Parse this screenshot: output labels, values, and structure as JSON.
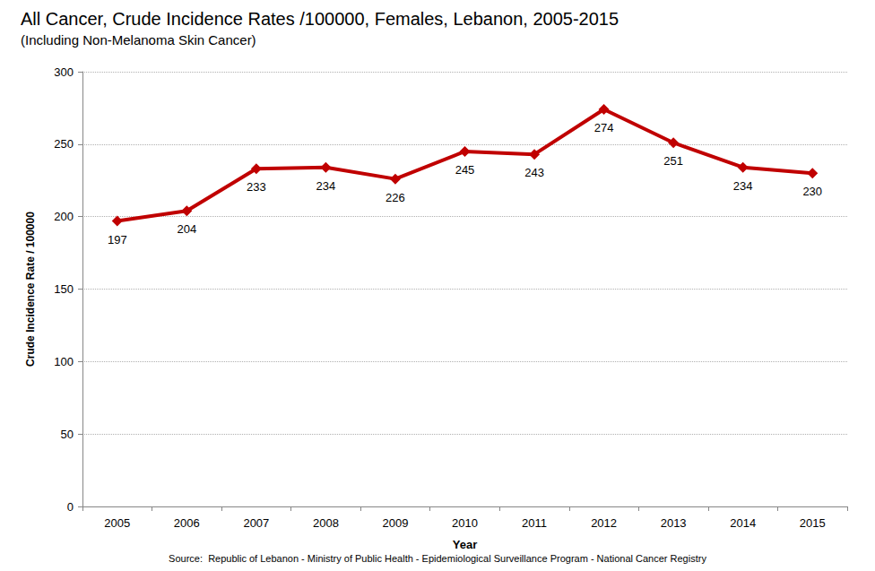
{
  "chart_data": {
    "type": "line",
    "title": "All Cancer, Crude Incidence Rates /100000, Females, Lebanon, 2005-2015",
    "subtitle": "(Including Non-Melanoma Skin Cancer)",
    "x_label": "Year",
    "y_label": "Crude Incidence Rate / 100000",
    "source": "Source:  Republic of Lebanon - Ministry of Public Health - Epidemiological Surveillance Program - National Cancer Registry",
    "categories": [
      "2005",
      "2006",
      "2007",
      "2008",
      "2009",
      "2010",
      "2011",
      "2012",
      "2013",
      "2014",
      "2015"
    ],
    "values": [
      197,
      204,
      233,
      234,
      226,
      245,
      243,
      274,
      251,
      234,
      230
    ],
    "color": "#c00000",
    "marker": "diamond",
    "ylim": [
      0,
      300
    ],
    "yticks": [
      0,
      50,
      100,
      150,
      200,
      250,
      300
    ],
    "grid": true,
    "data_labels": true
  }
}
